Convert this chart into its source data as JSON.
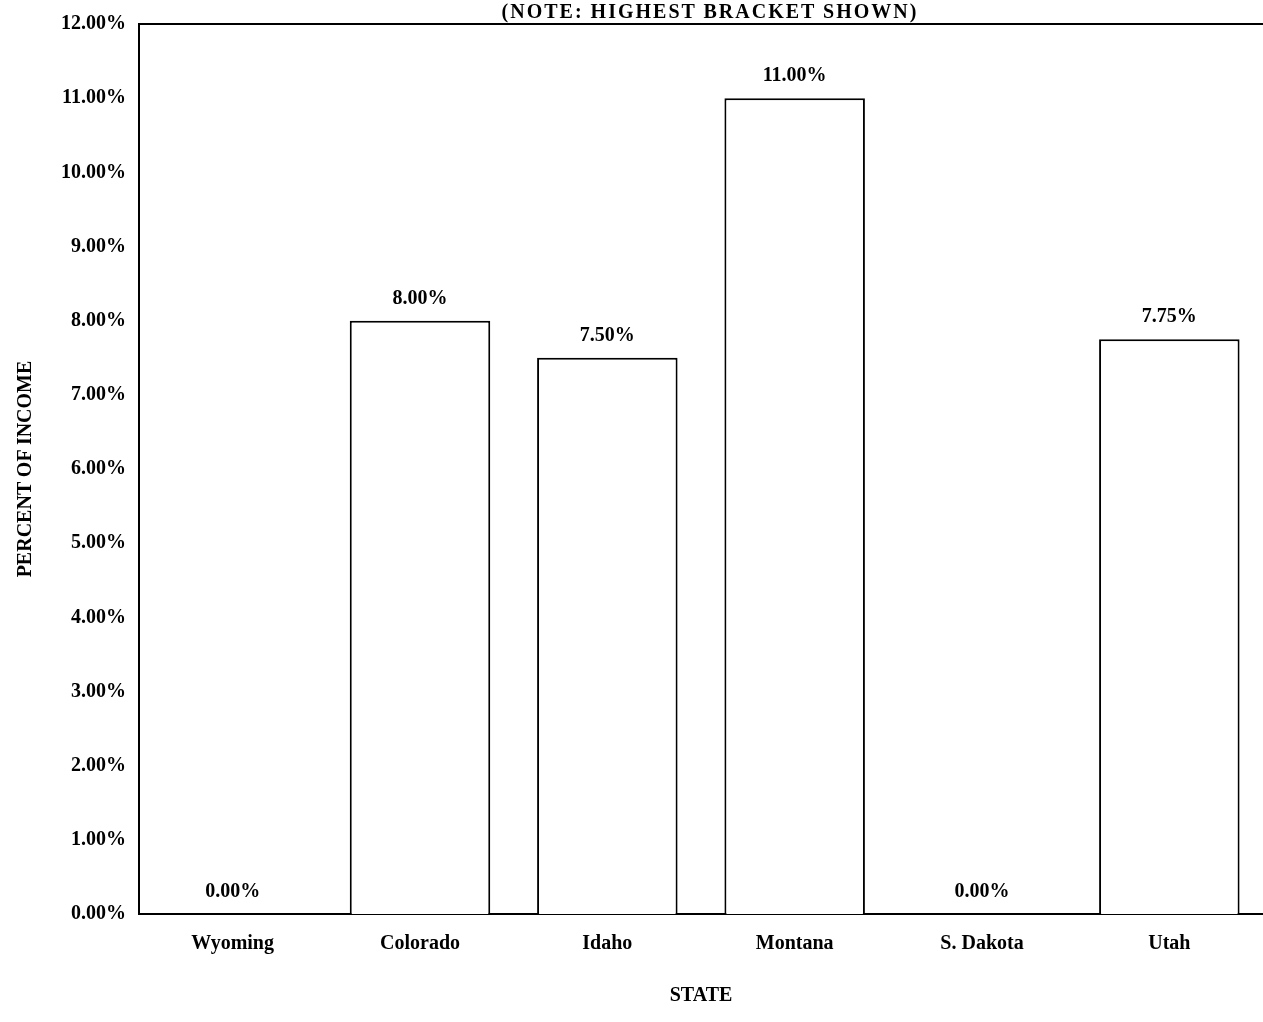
{
  "chart_data": {
    "type": "bar",
    "subtitle": "(NOTE: HIGHEST BRACKET SHOWN)",
    "xlabel": "STATE",
    "ylabel": "PERCENT OF INCOME",
    "categories": [
      "Wyoming",
      "Colorado",
      "Idaho",
      "Montana",
      "S. Dakota",
      "Utah"
    ],
    "values": [
      0,
      8,
      7.5,
      11,
      0,
      7.75
    ],
    "value_labels": [
      "0.00%",
      "8.00%",
      "7.50%",
      "11.00%",
      "0.00%",
      "7.75%"
    ],
    "color": "#ffffff",
    "ylim": [
      0,
      12
    ],
    "yticks": [
      {
        "value": 0,
        "label": "0.00%"
      },
      {
        "value": 1,
        "label": "1.00%"
      },
      {
        "value": 2,
        "label": "2.00%"
      },
      {
        "value": 3,
        "label": "3.00%"
      },
      {
        "value": 4,
        "label": "4.00%"
      },
      {
        "value": 5,
        "label": "5.00%"
      },
      {
        "value": 6,
        "label": "6.00%"
      },
      {
        "value": 7,
        "label": "7.00%"
      },
      {
        "value": 8,
        "label": "8.00%"
      },
      {
        "value": 9,
        "label": "9.00%"
      },
      {
        "value": 10,
        "label": "10.00%"
      },
      {
        "value": 11,
        "label": "11.00%"
      },
      {
        "value": 12,
        "label": "12.00%"
      }
    ],
    "grid": false,
    "legend": false
  }
}
